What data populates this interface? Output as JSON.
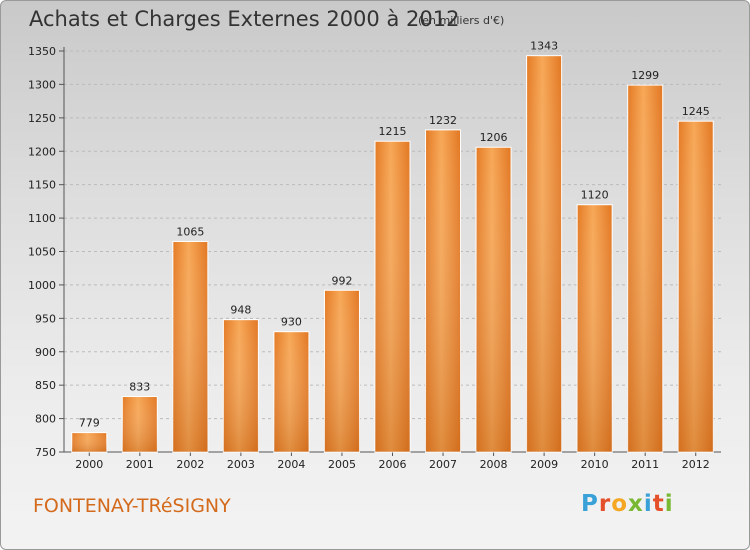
{
  "title": "Achats et Charges Externes 2000 à 2012",
  "subtitle": "(en milliers d'€)",
  "location": "FONTENAY-TRéSIGNY",
  "logo": {
    "letters": [
      "P",
      "r",
      "o",
      "x",
      "i",
      "t",
      "i"
    ],
    "colors": [
      "#3aa0d8",
      "#e4502a",
      "#f5a623",
      "#78b833",
      "#3aa0d8",
      "#e4502a",
      "#78b833"
    ]
  },
  "colors": {
    "bar": "#f08a2e",
    "bar_light": "#f7a857",
    "bar_dark": "#d8711c",
    "grid": "#bbbbbb"
  },
  "chart_data": {
    "type": "bar",
    "categories": [
      "2000",
      "2001",
      "2002",
      "2003",
      "2004",
      "2005",
      "2006",
      "2007",
      "2008",
      "2009",
      "2010",
      "2011",
      "2012"
    ],
    "values": [
      779,
      833,
      1065,
      948,
      930,
      992,
      1215,
      1232,
      1206,
      1343,
      1120,
      1299,
      1245
    ],
    "ylim": [
      750,
      1350
    ],
    "yticks": [
      750,
      800,
      850,
      900,
      950,
      1000,
      1050,
      1100,
      1150,
      1200,
      1250,
      1300,
      1350
    ],
    "grid": true,
    "data_labels": true
  }
}
